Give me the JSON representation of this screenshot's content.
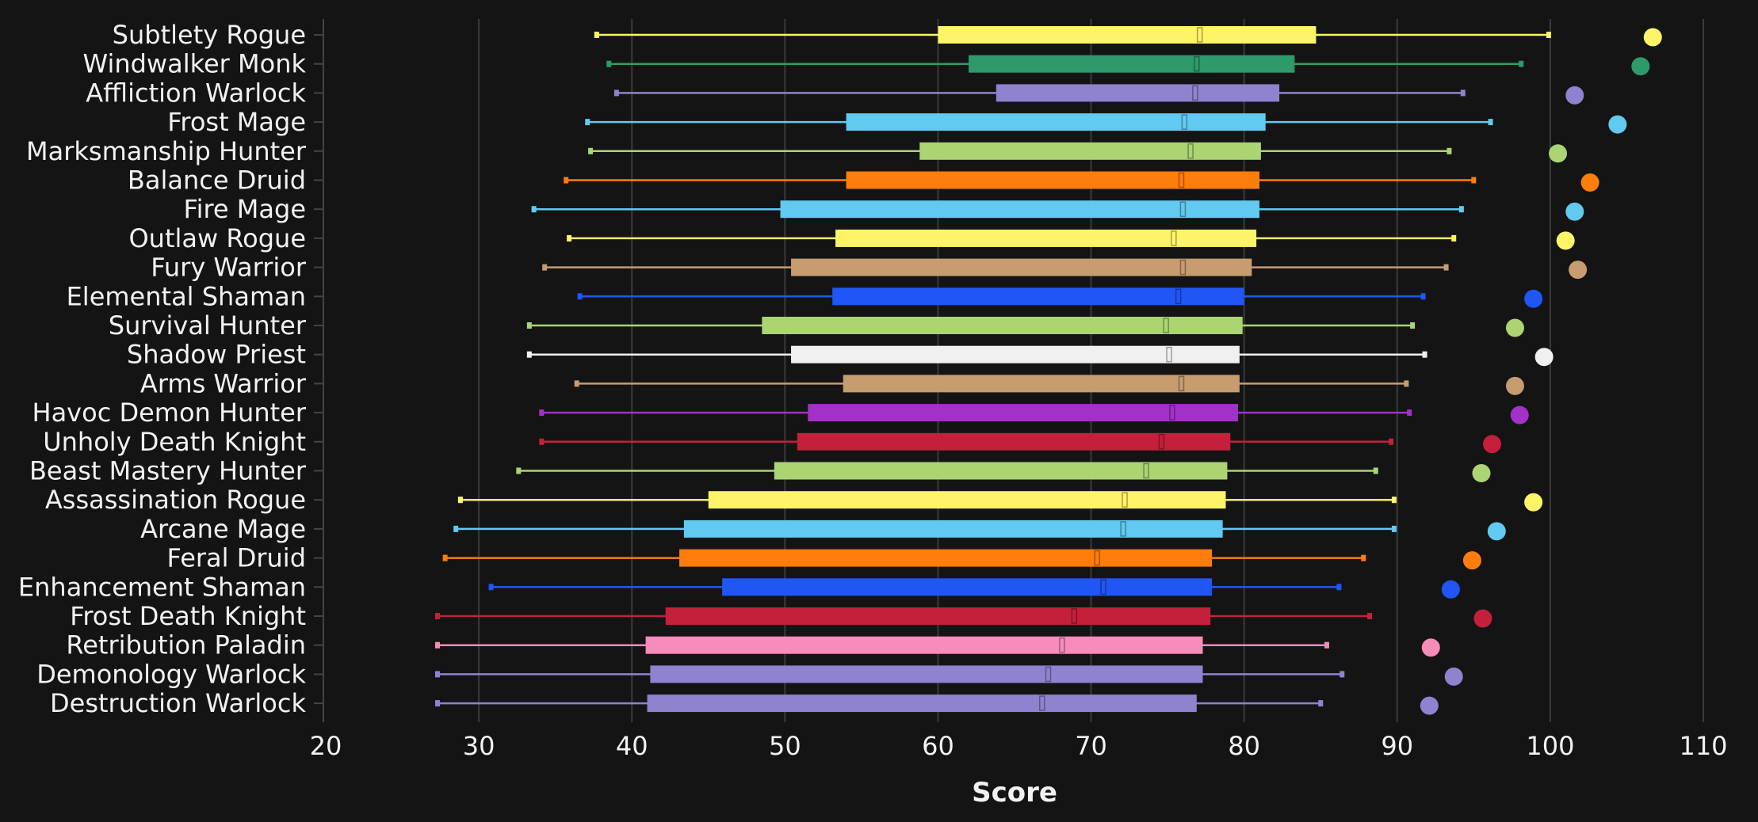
{
  "chart_data": {
    "type": "box",
    "orientation": "horizontal",
    "xlabel": "Score",
    "xlim": [
      20,
      110
    ],
    "xticks": [
      20,
      30,
      40,
      50,
      60,
      70,
      80,
      90,
      100,
      110
    ],
    "grid": true,
    "series": [
      {
        "name": "Subtlety Rogue",
        "color": "#fff468",
        "min": 37.7,
        "q1": 60.0,
        "median": 77.1,
        "q3": 84.7,
        "max": 99.9,
        "max_point": 106.7
      },
      {
        "name": "Windwalker Monk",
        "color": "#2e9a6a",
        "min": 38.5,
        "q1": 62.0,
        "median": 76.9,
        "q3": 83.3,
        "max": 98.1,
        "max_point": 105.9
      },
      {
        "name": "Affliction Warlock",
        "color": "#8f82cf",
        "min": 39.0,
        "q1": 63.8,
        "median": 76.8,
        "q3": 82.3,
        "max": 94.3,
        "max_point": 101.6
      },
      {
        "name": "Frost Mage",
        "color": "#62c9f0",
        "min": 37.1,
        "q1": 54.0,
        "median": 76.1,
        "q3": 81.4,
        "max": 96.1,
        "max_point": 104.4
      },
      {
        "name": "Marksmanship Hunter",
        "color": "#abd473",
        "min": 37.3,
        "q1": 58.8,
        "median": 76.5,
        "q3": 81.1,
        "max": 93.4,
        "max_point": 100.5
      },
      {
        "name": "Balance Druid",
        "color": "#ff7d0a",
        "min": 35.7,
        "q1": 54.0,
        "median": 75.9,
        "q3": 81.0,
        "max": 95.0,
        "max_point": 102.6
      },
      {
        "name": "Fire Mage",
        "color": "#62c9f0",
        "min": 33.6,
        "q1": 49.7,
        "median": 76.0,
        "q3": 81.0,
        "max": 94.2,
        "max_point": 101.6
      },
      {
        "name": "Outlaw Rogue",
        "color": "#fff468",
        "min": 35.9,
        "q1": 53.3,
        "median": 75.4,
        "q3": 80.8,
        "max": 93.7,
        "max_point": 101.0
      },
      {
        "name": "Fury Warrior",
        "color": "#c79c6e",
        "min": 34.3,
        "q1": 50.4,
        "median": 76.0,
        "q3": 80.5,
        "max": 93.2,
        "max_point": 101.8
      },
      {
        "name": "Elemental Shaman",
        "color": "#1f56f5",
        "min": 36.6,
        "q1": 53.1,
        "median": 75.7,
        "q3": 80.0,
        "max": 91.7,
        "max_point": 98.9
      },
      {
        "name": "Survival Hunter",
        "color": "#abd473",
        "min": 33.3,
        "q1": 48.5,
        "median": 74.9,
        "q3": 79.9,
        "max": 91.0,
        "max_point": 97.7
      },
      {
        "name": "Shadow Priest",
        "color": "#f0f0f0",
        "min": 33.3,
        "q1": 50.4,
        "median": 75.1,
        "q3": 79.7,
        "max": 91.8,
        "max_point": 99.6
      },
      {
        "name": "Arms Warrior",
        "color": "#c79c6e",
        "min": 36.4,
        "q1": 53.8,
        "median": 75.9,
        "q3": 79.7,
        "max": 90.6,
        "max_point": 97.7
      },
      {
        "name": "Havoc Demon Hunter",
        "color": "#a330c9",
        "min": 34.1,
        "q1": 51.5,
        "median": 75.3,
        "q3": 79.6,
        "max": 90.8,
        "max_point": 98.0
      },
      {
        "name": "Unholy Death Knight",
        "color": "#c41f3b",
        "min": 34.1,
        "q1": 50.8,
        "median": 74.6,
        "q3": 79.1,
        "max": 89.6,
        "max_point": 96.2
      },
      {
        "name": "Beast Mastery Hunter",
        "color": "#abd473",
        "min": 32.6,
        "q1": 49.3,
        "median": 73.6,
        "q3": 78.9,
        "max": 88.6,
        "max_point": 95.5
      },
      {
        "name": "Assassination Rogue",
        "color": "#fff468",
        "min": 28.8,
        "q1": 45.0,
        "median": 72.2,
        "q3": 78.8,
        "max": 89.8,
        "max_point": 98.9
      },
      {
        "name": "Arcane Mage",
        "color": "#62c9f0",
        "min": 28.5,
        "q1": 43.4,
        "median": 72.1,
        "q3": 78.6,
        "max": 89.8,
        "max_point": 96.5
      },
      {
        "name": "Feral Druid",
        "color": "#ff7d0a",
        "min": 27.8,
        "q1": 43.1,
        "median": 70.4,
        "q3": 77.9,
        "max": 87.8,
        "max_point": 94.9
      },
      {
        "name": "Enhancement Shaman",
        "color": "#1f56f5",
        "min": 30.8,
        "q1": 45.9,
        "median": 70.8,
        "q3": 77.9,
        "max": 86.2,
        "max_point": 93.5
      },
      {
        "name": "Frost Death Knight",
        "color": "#c41f3b",
        "min": 27.3,
        "q1": 42.2,
        "median": 68.9,
        "q3": 77.8,
        "max": 88.2,
        "max_point": 95.6
      },
      {
        "name": "Retribution Paladin",
        "color": "#f58cba",
        "min": 27.3,
        "q1": 40.9,
        "median": 68.1,
        "q3": 77.3,
        "max": 85.4,
        "max_point": 92.2
      },
      {
        "name": "Demonology Warlock",
        "color": "#8f82cf",
        "min": 27.3,
        "q1": 41.2,
        "median": 67.2,
        "q3": 77.3,
        "max": 86.4,
        "max_point": 93.7
      },
      {
        "name": "Destruction Warlock",
        "color": "#8f82cf",
        "min": 27.3,
        "q1": 41.0,
        "median": 66.8,
        "q3": 76.9,
        "max": 85.0,
        "max_point": 92.1
      }
    ]
  }
}
